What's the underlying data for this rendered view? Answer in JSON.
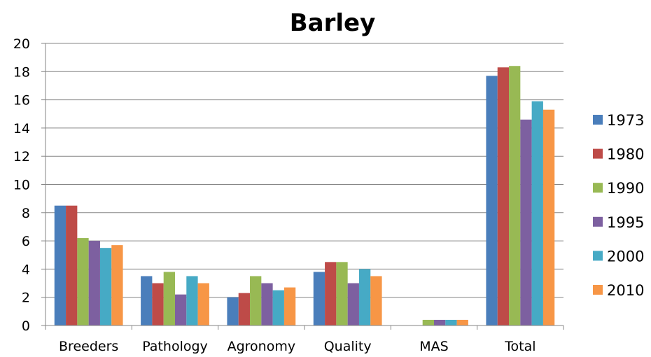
{
  "chart_data": {
    "type": "bar",
    "title": "Barley",
    "xlabel": "",
    "ylabel": "",
    "ylim": [
      0,
      20
    ],
    "yticks": [
      0,
      2,
      4,
      6,
      8,
      10,
      12,
      14,
      16,
      18,
      20
    ],
    "grid": true,
    "legend": "right",
    "categories": [
      "Breeders",
      "Pathology",
      "Agronomy",
      "Quality",
      "MAS",
      "Total"
    ],
    "series": [
      {
        "name": "1973",
        "color": "#4a7ebb",
        "values": [
          8.5,
          3.5,
          2.0,
          3.8,
          0.0,
          17.7
        ]
      },
      {
        "name": "1980",
        "color": "#be4b48",
        "values": [
          8.5,
          3.0,
          2.3,
          4.5,
          0.0,
          18.3
        ]
      },
      {
        "name": "1990",
        "color": "#98b954",
        "values": [
          6.2,
          3.8,
          3.5,
          4.5,
          0.4,
          18.4
        ]
      },
      {
        "name": "1995",
        "color": "#7d60a0",
        "values": [
          6.0,
          2.2,
          3.0,
          3.0,
          0.4,
          14.6
        ]
      },
      {
        "name": "2000",
        "color": "#46aac5",
        "values": [
          5.5,
          3.5,
          2.5,
          4.0,
          0.4,
          15.9
        ]
      },
      {
        "name": "2010",
        "color": "#f79646",
        "values": [
          5.7,
          3.0,
          2.7,
          3.5,
          0.4,
          15.3
        ]
      }
    ]
  }
}
